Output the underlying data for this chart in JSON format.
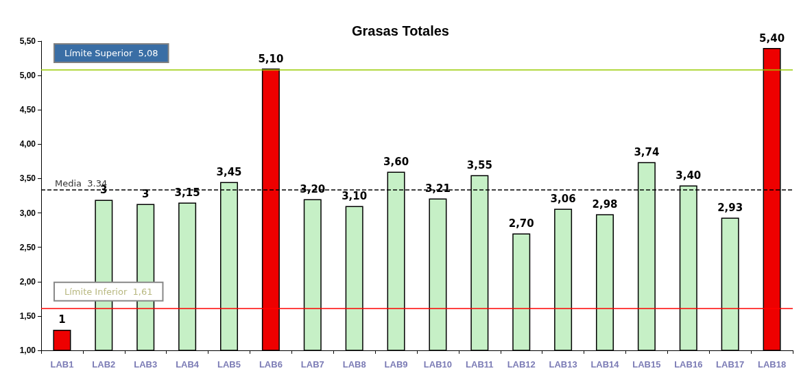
{
  "chart_data": {
    "type": "bar",
    "title": "Grasas Totales",
    "categories": [
      "LAB1",
      "LAB2",
      "LAB3",
      "LAB4",
      "LAB5",
      "LAB6",
      "LAB7",
      "LAB8",
      "LAB9",
      "LAB10",
      "LAB11",
      "LAB12",
      "LAB13",
      "LAB14",
      "LAB15",
      "LAB16",
      "LAB17",
      "LAB18"
    ],
    "values": [
      1.3,
      3.19,
      3.13,
      3.15,
      3.45,
      5.1,
      3.2,
      3.1,
      3.6,
      3.21,
      3.55,
      2.7,
      3.06,
      2.98,
      3.74,
      3.4,
      2.93,
      5.4
    ],
    "colors": [
      "#ee0000",
      "#c6f0c6",
      "#c6f0c6",
      "#c6f0c6",
      "#c6f0c6",
      "#ee0000",
      "#c6f0c6",
      "#c6f0c6",
      "#c6f0c6",
      "#c6f0c6",
      "#c6f0c6",
      "#c6f0c6",
      "#c6f0c6",
      "#c6f0c6",
      "#c6f0c6",
      "#c6f0c6",
      "#c6f0c6",
      "#ee0000"
    ],
    "value_labels": [
      "1",
      "3",
      "3",
      "3,15",
      "3,45",
      "5,10",
      "3,20",
      "3,10",
      "3,60",
      "3,21",
      "3,55",
      "2,70",
      "3,06",
      "2,98",
      "3,74",
      "3,40",
      "2,93",
      "5,40"
    ],
    "ylim": [
      1.0,
      5.5
    ],
    "yticks": [
      {
        "value": 1.0,
        "label": "1,00"
      },
      {
        "value": 1.5,
        "label": "1,50"
      },
      {
        "value": 2.0,
        "label": "2,00"
      },
      {
        "value": 2.5,
        "label": "2,50"
      },
      {
        "value": 3.0,
        "label": "3,00"
      },
      {
        "value": 3.5,
        "label": "3,50"
      },
      {
        "value": 4.0,
        "label": "4,00"
      },
      {
        "value": 4.5,
        "label": "4,50"
      },
      {
        "value": 5.0,
        "label": "5,00"
      },
      {
        "value": 5.5,
        "label": "5,50"
      }
    ],
    "ref_lines": [
      {
        "axis": "y",
        "value": 5.08,
        "label": "Límite Superior  5,08",
        "color": "#99cc00",
        "line_style": "solid"
      },
      {
        "axis": "y",
        "value": 3.34,
        "label": "Media  3.34",
        "color": "#000000",
        "line_style": "dashed"
      },
      {
        "axis": "y",
        "value": 1.61,
        "label": "Límite Inferior  1,61",
        "color": "#ff0000",
        "line_style": "solid"
      }
    ],
    "grid": false
  }
}
